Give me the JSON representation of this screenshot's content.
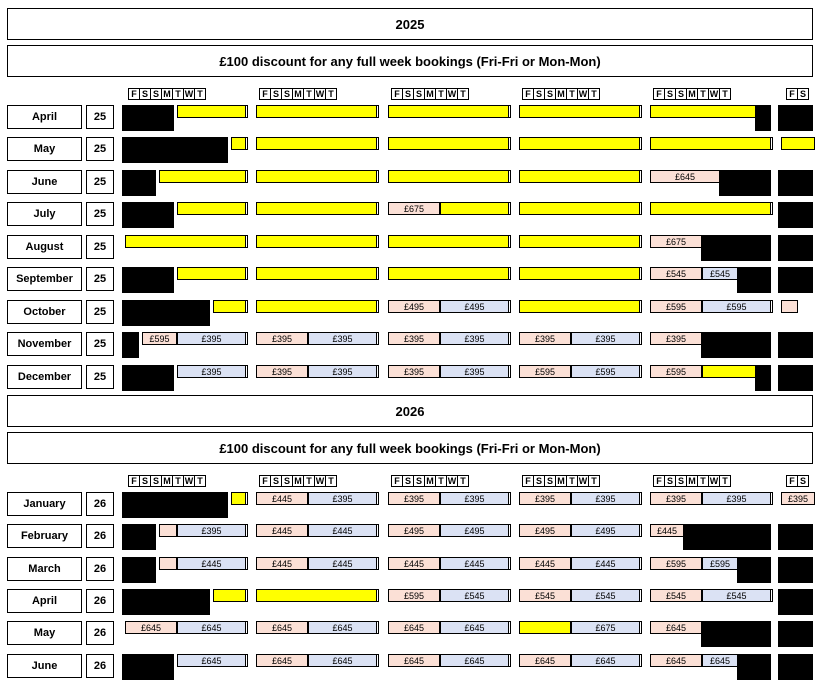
{
  "sections": [
    {
      "year": "2025",
      "note": "£100 discount for any full week bookings (Fri-Fri or Mon-Mon)"
    },
    {
      "year": "2026",
      "note": "£100 discount for any full week bookings (Fri-Fri or Mon-Mon)"
    }
  ],
  "day_headers": [
    "F",
    "S",
    "S",
    "M",
    "T",
    "W",
    "T"
  ],
  "colors": {
    "available": "#ffff00",
    "booked": "#000000",
    "pink": "#fbe0d6",
    "blue": "#dbe2f4"
  },
  "months_2025": [
    {
      "name": "April",
      "yr": "25"
    },
    {
      "name": "May",
      "yr": "25"
    },
    {
      "name": "June",
      "yr": "25"
    },
    {
      "name": "July",
      "yr": "25"
    },
    {
      "name": "August",
      "yr": "25"
    },
    {
      "name": "September",
      "yr": "25"
    },
    {
      "name": "October",
      "yr": "25"
    },
    {
      "name": "November",
      "yr": "25"
    },
    {
      "name": "December",
      "yr": "25"
    }
  ],
  "months_2026": [
    {
      "name": "January",
      "yr": "26"
    },
    {
      "name": "February",
      "yr": "26"
    },
    {
      "name": "March",
      "yr": "26"
    },
    {
      "name": "April",
      "yr": "26"
    },
    {
      "name": "May",
      "yr": "26"
    },
    {
      "name": "June",
      "yr": "26"
    }
  ],
  "prices": [
    "£595",
    "£395",
    "£495",
    "£675",
    "£645",
    "£545",
    "£445"
  ]
}
